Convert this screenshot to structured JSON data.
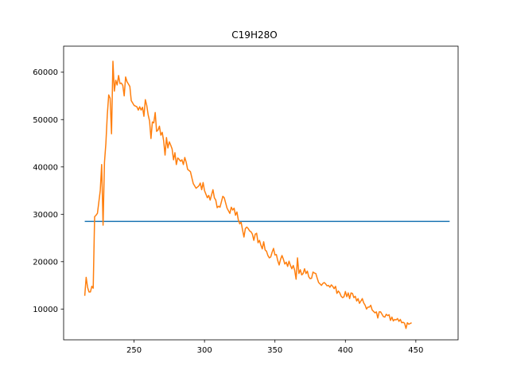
{
  "chart_data": {
    "type": "line",
    "title": "C19H28O",
    "xlabel": "",
    "ylabel": "",
    "xlim": [
      200,
      480
    ],
    "ylim": [
      3500,
      65500
    ],
    "x_ticks": [
      250,
      300,
      350,
      400,
      450
    ],
    "y_ticks": [
      10000,
      20000,
      30000,
      40000,
      50000,
      60000
    ],
    "grid": false,
    "legend": "none",
    "series": [
      {
        "color": "#1f77b4",
        "points": [
          [
            215,
            28500
          ],
          [
            474,
            28500
          ]
        ]
      },
      {
        "color": "#ff7f0e",
        "points": [
          [
            215,
            12800
          ],
          [
            216,
            16700
          ],
          [
            217,
            14600
          ],
          [
            218,
            13600
          ],
          [
            219,
            13600
          ],
          [
            220,
            14800
          ],
          [
            221,
            14400
          ],
          [
            222,
            29500
          ],
          [
            223,
            29800
          ],
          [
            224,
            30200
          ],
          [
            226,
            35000
          ],
          [
            227,
            40500
          ],
          [
            228,
            27700
          ],
          [
            229,
            41000
          ],
          [
            230,
            45000
          ],
          [
            231,
            51000
          ],
          [
            232,
            55200
          ],
          [
            233,
            54500
          ],
          [
            234,
            47000
          ],
          [
            235,
            62300
          ],
          [
            236,
            56000
          ],
          [
            237,
            58300
          ],
          [
            238,
            57300
          ],
          [
            239,
            59300
          ],
          [
            240,
            57600
          ],
          [
            241,
            57700
          ],
          [
            242,
            57200
          ],
          [
            243,
            55000
          ],
          [
            244,
            59000
          ],
          [
            245,
            58000
          ],
          [
            246,
            57500
          ],
          [
            247,
            57000
          ],
          [
            248,
            54000
          ],
          [
            250,
            53000
          ],
          [
            252,
            52700
          ],
          [
            253,
            52000
          ],
          [
            254,
            52700
          ],
          [
            255,
            52000
          ],
          [
            256,
            52600
          ],
          [
            257,
            50700
          ],
          [
            258,
            54200
          ],
          [
            259,
            53000
          ],
          [
            260,
            51000
          ],
          [
            261,
            49700
          ],
          [
            262,
            46000
          ],
          [
            263,
            49500
          ],
          [
            264,
            49300
          ],
          [
            265,
            51500
          ],
          [
            266,
            47500
          ],
          [
            267,
            47800
          ],
          [
            268,
            48600
          ],
          [
            269,
            46700
          ],
          [
            270,
            47300
          ],
          [
            271,
            45500
          ],
          [
            272,
            42500
          ],
          [
            273,
            46200
          ],
          [
            274,
            44000
          ],
          [
            275,
            45300
          ],
          [
            276,
            44600
          ],
          [
            277,
            43800
          ],
          [
            278,
            41500
          ],
          [
            279,
            43000
          ],
          [
            280,
            40500
          ],
          [
            281,
            41900
          ],
          [
            282,
            41600
          ],
          [
            283,
            41200
          ],
          [
            284,
            41500
          ],
          [
            285,
            40500
          ],
          [
            286,
            42000
          ],
          [
            287,
            41000
          ],
          [
            288,
            39500
          ],
          [
            290,
            39000
          ],
          [
            292,
            36500
          ],
          [
            294,
            35500
          ],
          [
            296,
            36000
          ],
          [
            297,
            36600
          ],
          [
            298,
            35200
          ],
          [
            299,
            36700
          ],
          [
            300,
            35000
          ],
          [
            302,
            33500
          ],
          [
            303,
            34000
          ],
          [
            304,
            33000
          ],
          [
            306,
            35200
          ],
          [
            307,
            33500
          ],
          [
            308,
            33000
          ],
          [
            309,
            31400
          ],
          [
            310,
            31700
          ],
          [
            311,
            31500
          ],
          [
            313,
            33800
          ],
          [
            314,
            33500
          ],
          [
            316,
            31300
          ],
          [
            318,
            30200
          ],
          [
            319,
            31500
          ],
          [
            320,
            30900
          ],
          [
            321,
            31300
          ],
          [
            322,
            29800
          ],
          [
            323,
            30500
          ],
          [
            324,
            28800
          ],
          [
            325,
            28000
          ],
          [
            326,
            28300
          ],
          [
            327,
            26700
          ],
          [
            328,
            25200
          ],
          [
            329,
            27000
          ],
          [
            330,
            27300
          ],
          [
            331,
            27000
          ],
          [
            332,
            26500
          ],
          [
            333,
            26300
          ],
          [
            334,
            25800
          ],
          [
            335,
            24500
          ],
          [
            336,
            25800
          ],
          [
            337,
            26000
          ],
          [
            338,
            24000
          ],
          [
            339,
            24500
          ],
          [
            340,
            23500
          ],
          [
            341,
            22700
          ],
          [
            342,
            24200
          ],
          [
            343,
            22500
          ],
          [
            344,
            22200
          ],
          [
            345,
            21300
          ],
          [
            346,
            20800
          ],
          [
            347,
            21000
          ],
          [
            348,
            22000
          ],
          [
            349,
            22800
          ],
          [
            350,
            21400
          ],
          [
            351,
            21500
          ],
          [
            352,
            20200
          ],
          [
            353,
            19300
          ],
          [
            354,
            20500
          ],
          [
            355,
            21300
          ],
          [
            356,
            20500
          ],
          [
            357,
            19500
          ],
          [
            358,
            19900
          ],
          [
            359,
            19000
          ],
          [
            360,
            20100
          ],
          [
            361,
            19200
          ],
          [
            362,
            18500
          ],
          [
            363,
            19200
          ],
          [
            364,
            18200
          ],
          [
            365,
            16300
          ],
          [
            366,
            20800
          ],
          [
            367,
            17500
          ],
          [
            368,
            18300
          ],
          [
            369,
            17200
          ],
          [
            370,
            17500
          ],
          [
            371,
            18500
          ],
          [
            372,
            17500
          ],
          [
            373,
            18000
          ],
          [
            374,
            16800
          ],
          [
            375,
            16400
          ],
          [
            376,
            16500
          ],
          [
            377,
            17800
          ],
          [
            378,
            17600
          ],
          [
            379,
            17500
          ],
          [
            380,
            16500
          ],
          [
            381,
            15600
          ],
          [
            382,
            15300
          ],
          [
            383,
            15000
          ],
          [
            384,
            15400
          ],
          [
            385,
            15600
          ],
          [
            386,
            15300
          ],
          [
            387,
            14900
          ],
          [
            388,
            15000
          ],
          [
            389,
            14600
          ],
          [
            390,
            15100
          ],
          [
            391,
            14800
          ],
          [
            392,
            14300
          ],
          [
            393,
            14800
          ],
          [
            394,
            13300
          ],
          [
            395,
            13800
          ],
          [
            396,
            13400
          ],
          [
            397,
            12700
          ],
          [
            398,
            12400
          ],
          [
            399,
            12600
          ],
          [
            400,
            13700
          ],
          [
            401,
            12600
          ],
          [
            402,
            13400
          ],
          [
            403,
            12200
          ],
          [
            404,
            13400
          ],
          [
            405,
            13300
          ],
          [
            406,
            12400
          ],
          [
            407,
            12700
          ],
          [
            408,
            11700
          ],
          [
            409,
            12200
          ],
          [
            410,
            11200
          ],
          [
            411,
            11700
          ],
          [
            412,
            12200
          ],
          [
            413,
            11300
          ],
          [
            414,
            10800
          ],
          [
            415,
            10000
          ],
          [
            416,
            10400
          ],
          [
            417,
            10400
          ],
          [
            418,
            10800
          ],
          [
            419,
            9800
          ],
          [
            420,
            9500
          ],
          [
            421,
            9200
          ],
          [
            422,
            9400
          ],
          [
            423,
            8100
          ],
          [
            424,
            9400
          ],
          [
            425,
            9400
          ],
          [
            426,
            8900
          ],
          [
            427,
            8400
          ],
          [
            428,
            8300
          ],
          [
            429,
            8900
          ],
          [
            430,
            8600
          ],
          [
            431,
            8800
          ],
          [
            432,
            7600
          ],
          [
            433,
            8300
          ],
          [
            434,
            7500
          ],
          [
            435,
            7800
          ],
          [
            436,
            7700
          ],
          [
            437,
            8000
          ],
          [
            438,
            7400
          ],
          [
            439,
            7800
          ],
          [
            440,
            7100
          ],
          [
            441,
            7200
          ],
          [
            442,
            7000
          ],
          [
            443,
            5900
          ],
          [
            444,
            7100
          ],
          [
            445,
            6800
          ],
          [
            447,
            7100
          ]
        ]
      }
    ]
  }
}
